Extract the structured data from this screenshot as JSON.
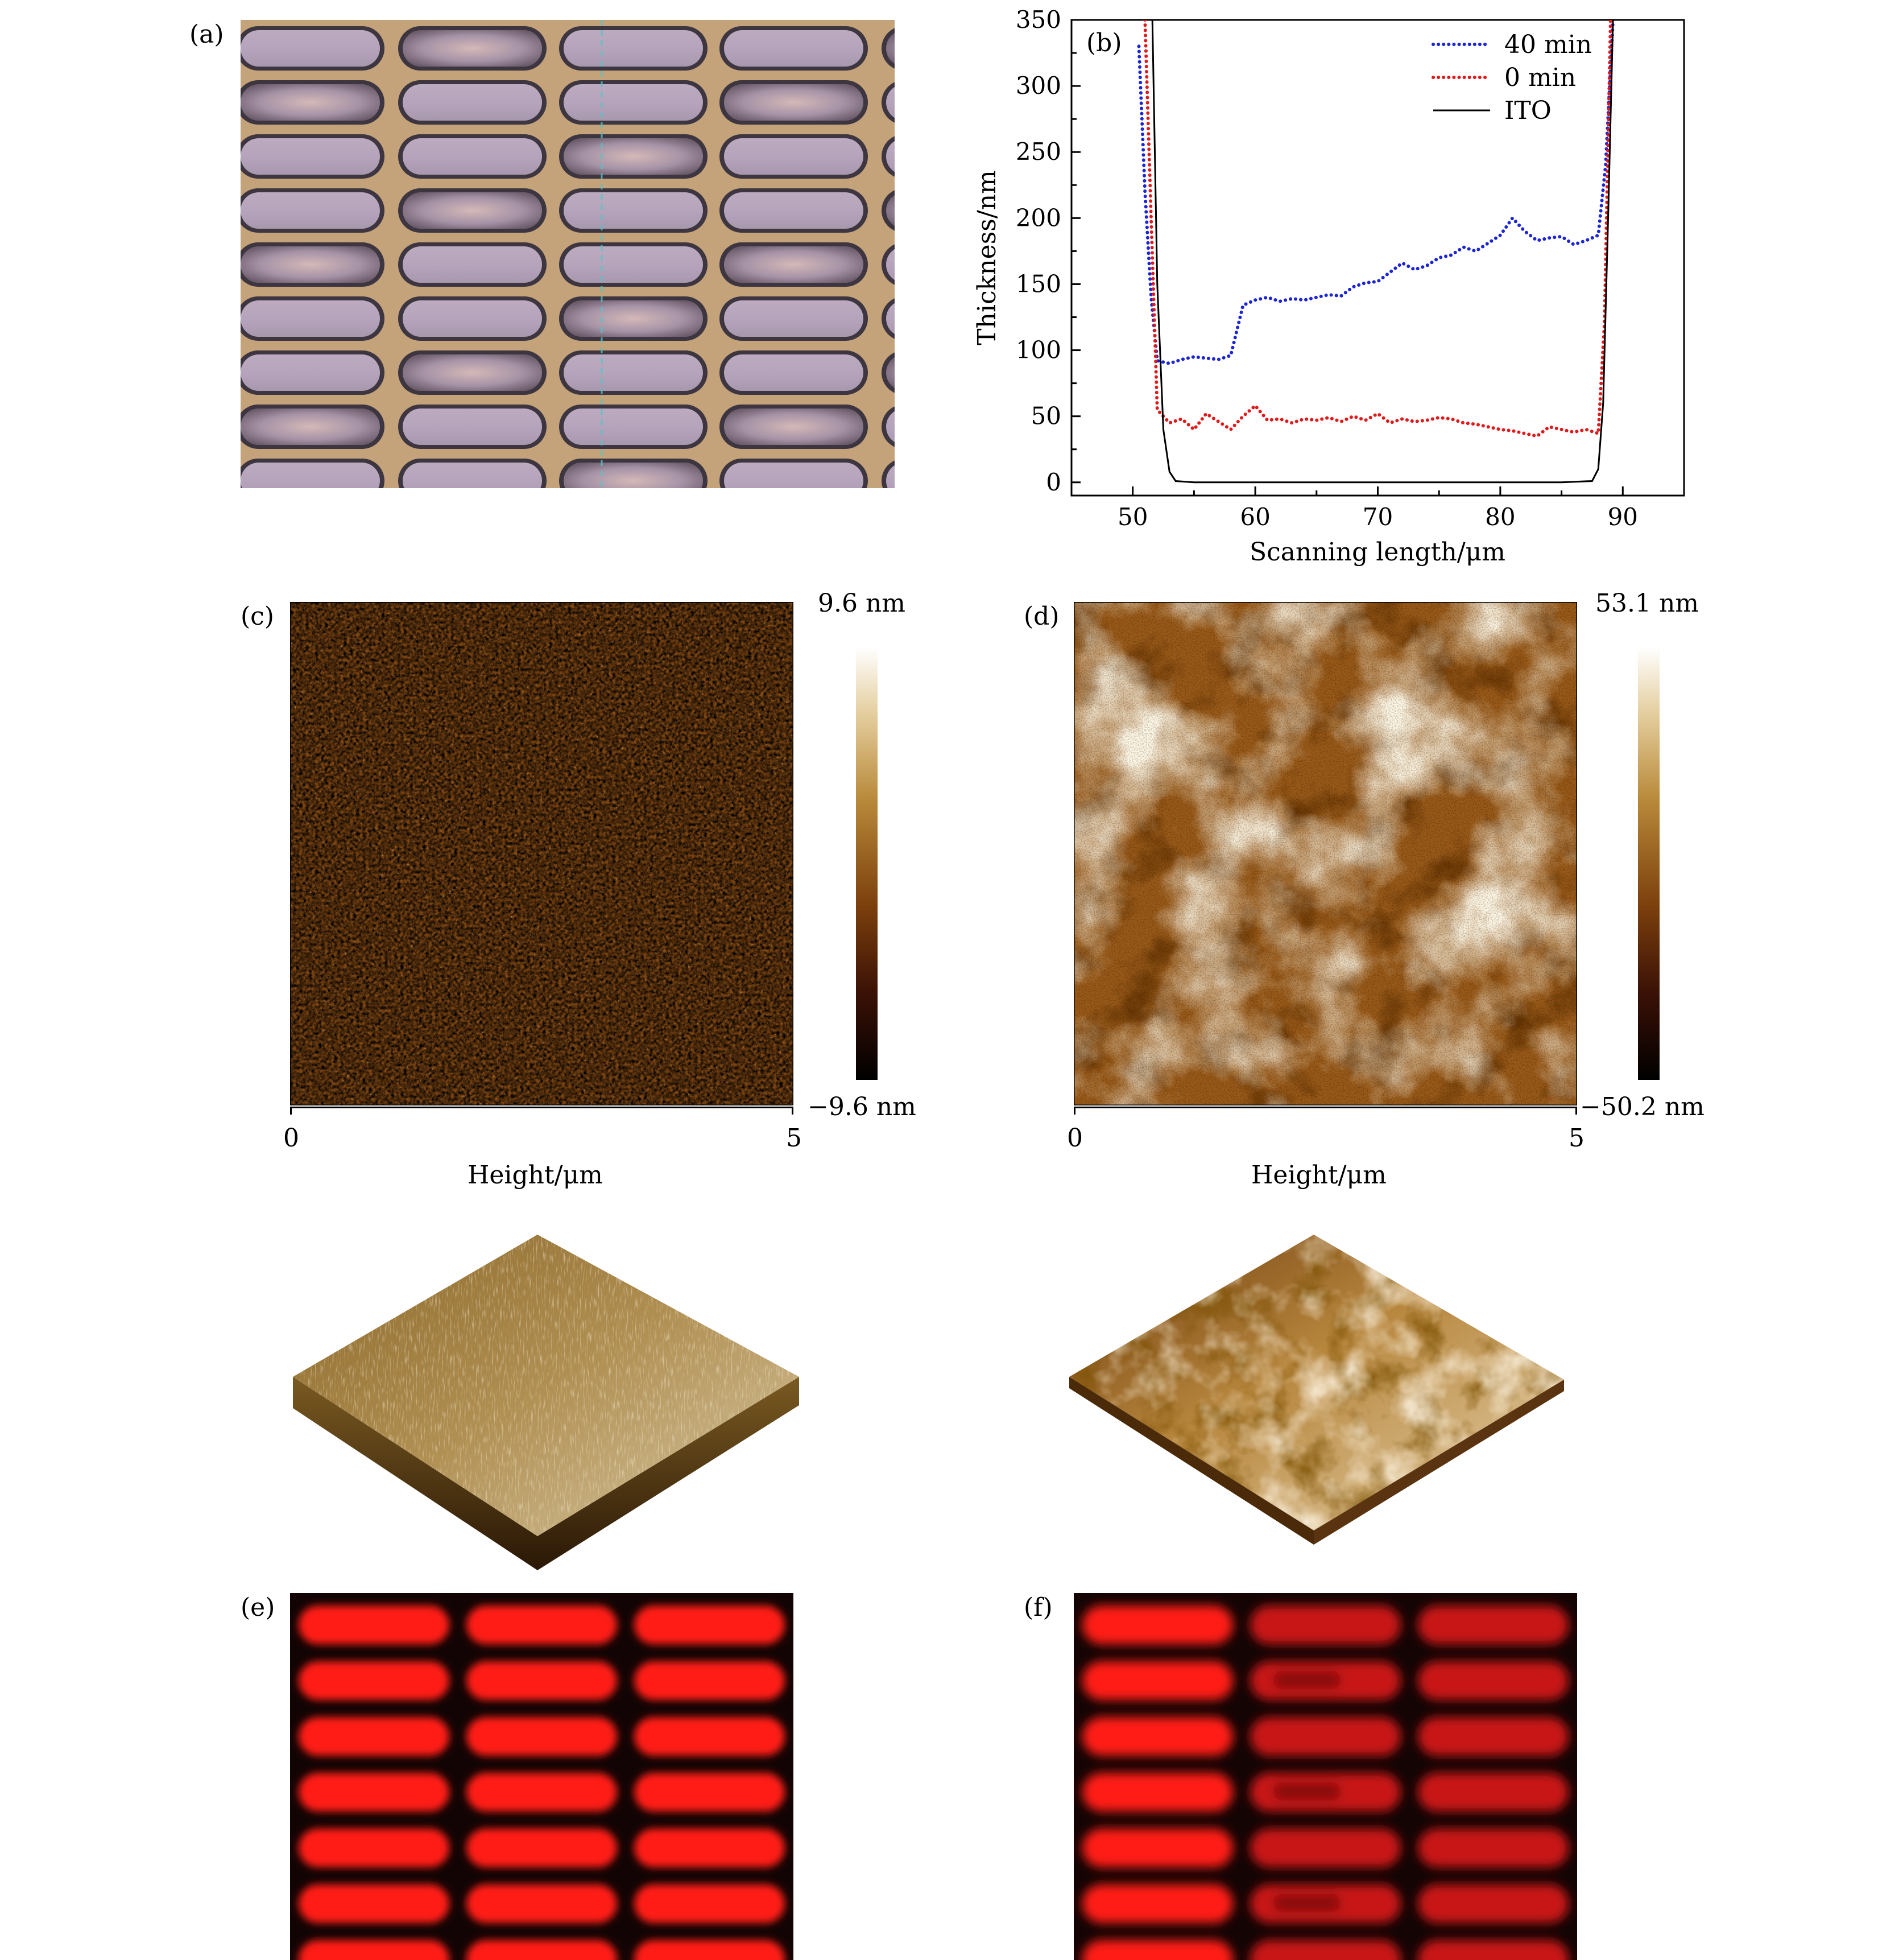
{
  "panels": {
    "a": {
      "label": "(a)"
    },
    "b": {
      "label": "(b)"
    },
    "c": {
      "label": "(c)",
      "scale_max": "9.6 nm",
      "scale_min": "−9.6 nm",
      "xmin": "0",
      "xmax": "5",
      "xlabel": "Height/μm"
    },
    "d": {
      "label": "(d)",
      "scale_max": "53.1 nm",
      "scale_min": "−50.2 nm",
      "xmin": "0",
      "xmax": "5",
      "xlabel": "Height/μm"
    },
    "e": {
      "label": "(e)"
    },
    "f": {
      "label": "(f)"
    }
  },
  "chart_data": {
    "type": "line",
    "xlabel": "Scanning length/μm",
    "ylabel": "Thickness/nm",
    "xlim": [
      45,
      95
    ],
    "ylim": [
      -10,
      350
    ],
    "xticks": [
      "50",
      "60",
      "70",
      "80",
      "90"
    ],
    "yticks": [
      "0",
      "50",
      "100",
      "150",
      "200",
      "250",
      "300",
      "350"
    ],
    "legend_position": "top-right",
    "series": [
      {
        "name": "40 min",
        "color": "#1b24d6",
        "style": "dotted",
        "x": [
          50.5,
          51.0,
          51.5,
          52.0,
          53,
          54,
          55,
          56,
          57,
          58,
          59,
          60,
          61,
          62,
          63,
          64,
          65,
          66,
          67,
          68,
          69,
          70,
          71,
          72,
          73,
          74,
          75,
          76,
          77,
          78,
          79,
          80,
          81,
          82,
          83,
          84,
          85,
          86,
          87,
          88,
          88.6,
          89.2
        ],
        "y": [
          330,
          220,
          140,
          92,
          90,
          93,
          95,
          94,
          93,
          96,
          134,
          138,
          140,
          137,
          139,
          138,
          140,
          142,
          141,
          148,
          151,
          152,
          159,
          166,
          161,
          164,
          170,
          172,
          178,
          175,
          181,
          187,
          200,
          190,
          183,
          185,
          186,
          180,
          183,
          187,
          240,
          350
        ]
      },
      {
        "name": "0 min",
        "color": "#e0191b",
        "style": "dotted",
        "x": [
          51.0,
          51.5,
          52.0,
          53,
          54,
          55,
          56,
          57,
          58,
          59,
          60,
          61,
          62,
          63,
          64,
          65,
          66,
          67,
          68,
          69,
          70,
          71,
          72,
          73,
          74,
          75,
          76,
          77,
          78,
          79,
          80,
          81,
          82,
          83,
          84,
          85,
          86,
          87,
          88,
          88.5,
          89.0
        ],
        "y": [
          350,
          200,
          55,
          45,
          48,
          40,
          52,
          46,
          40,
          50,
          58,
          47,
          48,
          45,
          48,
          47,
          49,
          46,
          50,
          47,
          52,
          45,
          48,
          46,
          47,
          49,
          48,
          45,
          44,
          42,
          40,
          39,
          37,
          35,
          42,
          40,
          38,
          40,
          37,
          120,
          350
        ]
      },
      {
        "name": "ITO",
        "color": "#000000",
        "style": "solid",
        "x": [
          51.6,
          52.0,
          52.5,
          53.0,
          53.5,
          55,
          60,
          65,
          70,
          75,
          80,
          85,
          87.5,
          88.0,
          88.4,
          88.8,
          89.2
        ],
        "y": [
          350,
          150,
          40,
          8,
          1,
          0,
          0,
          0,
          0,
          0,
          0,
          0,
          1,
          10,
          60,
          200,
          350
        ]
      }
    ]
  }
}
